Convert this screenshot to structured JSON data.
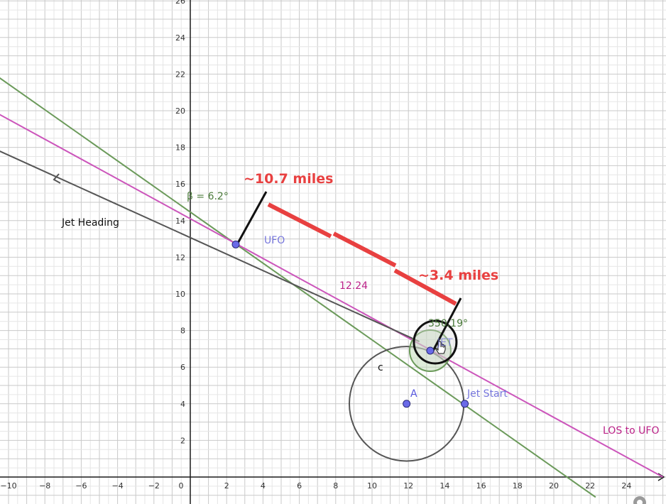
{
  "canvas": {
    "background": "#ffffff",
    "grid_minor": "#e6e6e6",
    "grid_major": "#c9c9c9",
    "axis_color": "#1a1a1a"
  },
  "axes": {
    "x_ticks": [
      -10,
      -8,
      -6,
      -4,
      -2,
      0,
      2,
      4,
      6,
      8,
      10,
      12,
      14,
      16,
      18,
      20,
      22,
      24
    ],
    "y_ticks": [
      2,
      4,
      6,
      8,
      10,
      12,
      14,
      16,
      18,
      20,
      22,
      24,
      26
    ],
    "xlim": [
      -10.5,
      26
    ],
    "ylim": [
      -1.1,
      27
    ]
  },
  "labels": {
    "beta": "β = 6.2°",
    "dist1": "~10.7 miles",
    "dist2": "~3.4 miles",
    "jet_heading": "Jet Heading",
    "ufo": "UFO",
    "los_length": "12.24",
    "angle": "350.19°",
    "c": "c",
    "a": "A",
    "jet": "JET",
    "jet_start": "Jet Start",
    "los": "LOS to UFO"
  },
  "colors": {
    "green_line": "#6b9a5a",
    "magenta_line": "#cc55bb",
    "heading_line": "#555555",
    "measure_red": "#e84040",
    "point_blue": "#6a6ae8",
    "label_green": "#4a7a3a",
    "label_magenta": "#bb2288"
  },
  "geometry": {
    "ufo_point": [
      2.5,
      12.7
    ],
    "jet_point": [
      13.2,
      6.9
    ],
    "a_point": [
      11.9,
      4.0
    ],
    "jet_start_point": [
      15.1,
      4.0
    ],
    "circle_c_radius": 3.15,
    "jet_heading_line": [
      [
        -10.5,
        17.8
      ],
      [
        12.6,
        7.4
      ]
    ],
    "los_line": [
      [
        -10.5,
        19.8
      ],
      [
        26.0,
        0.0
      ]
    ],
    "green_line": [
      [
        -10.5,
        21.8
      ],
      [
        22.3,
        -1.1
      ]
    ]
  }
}
